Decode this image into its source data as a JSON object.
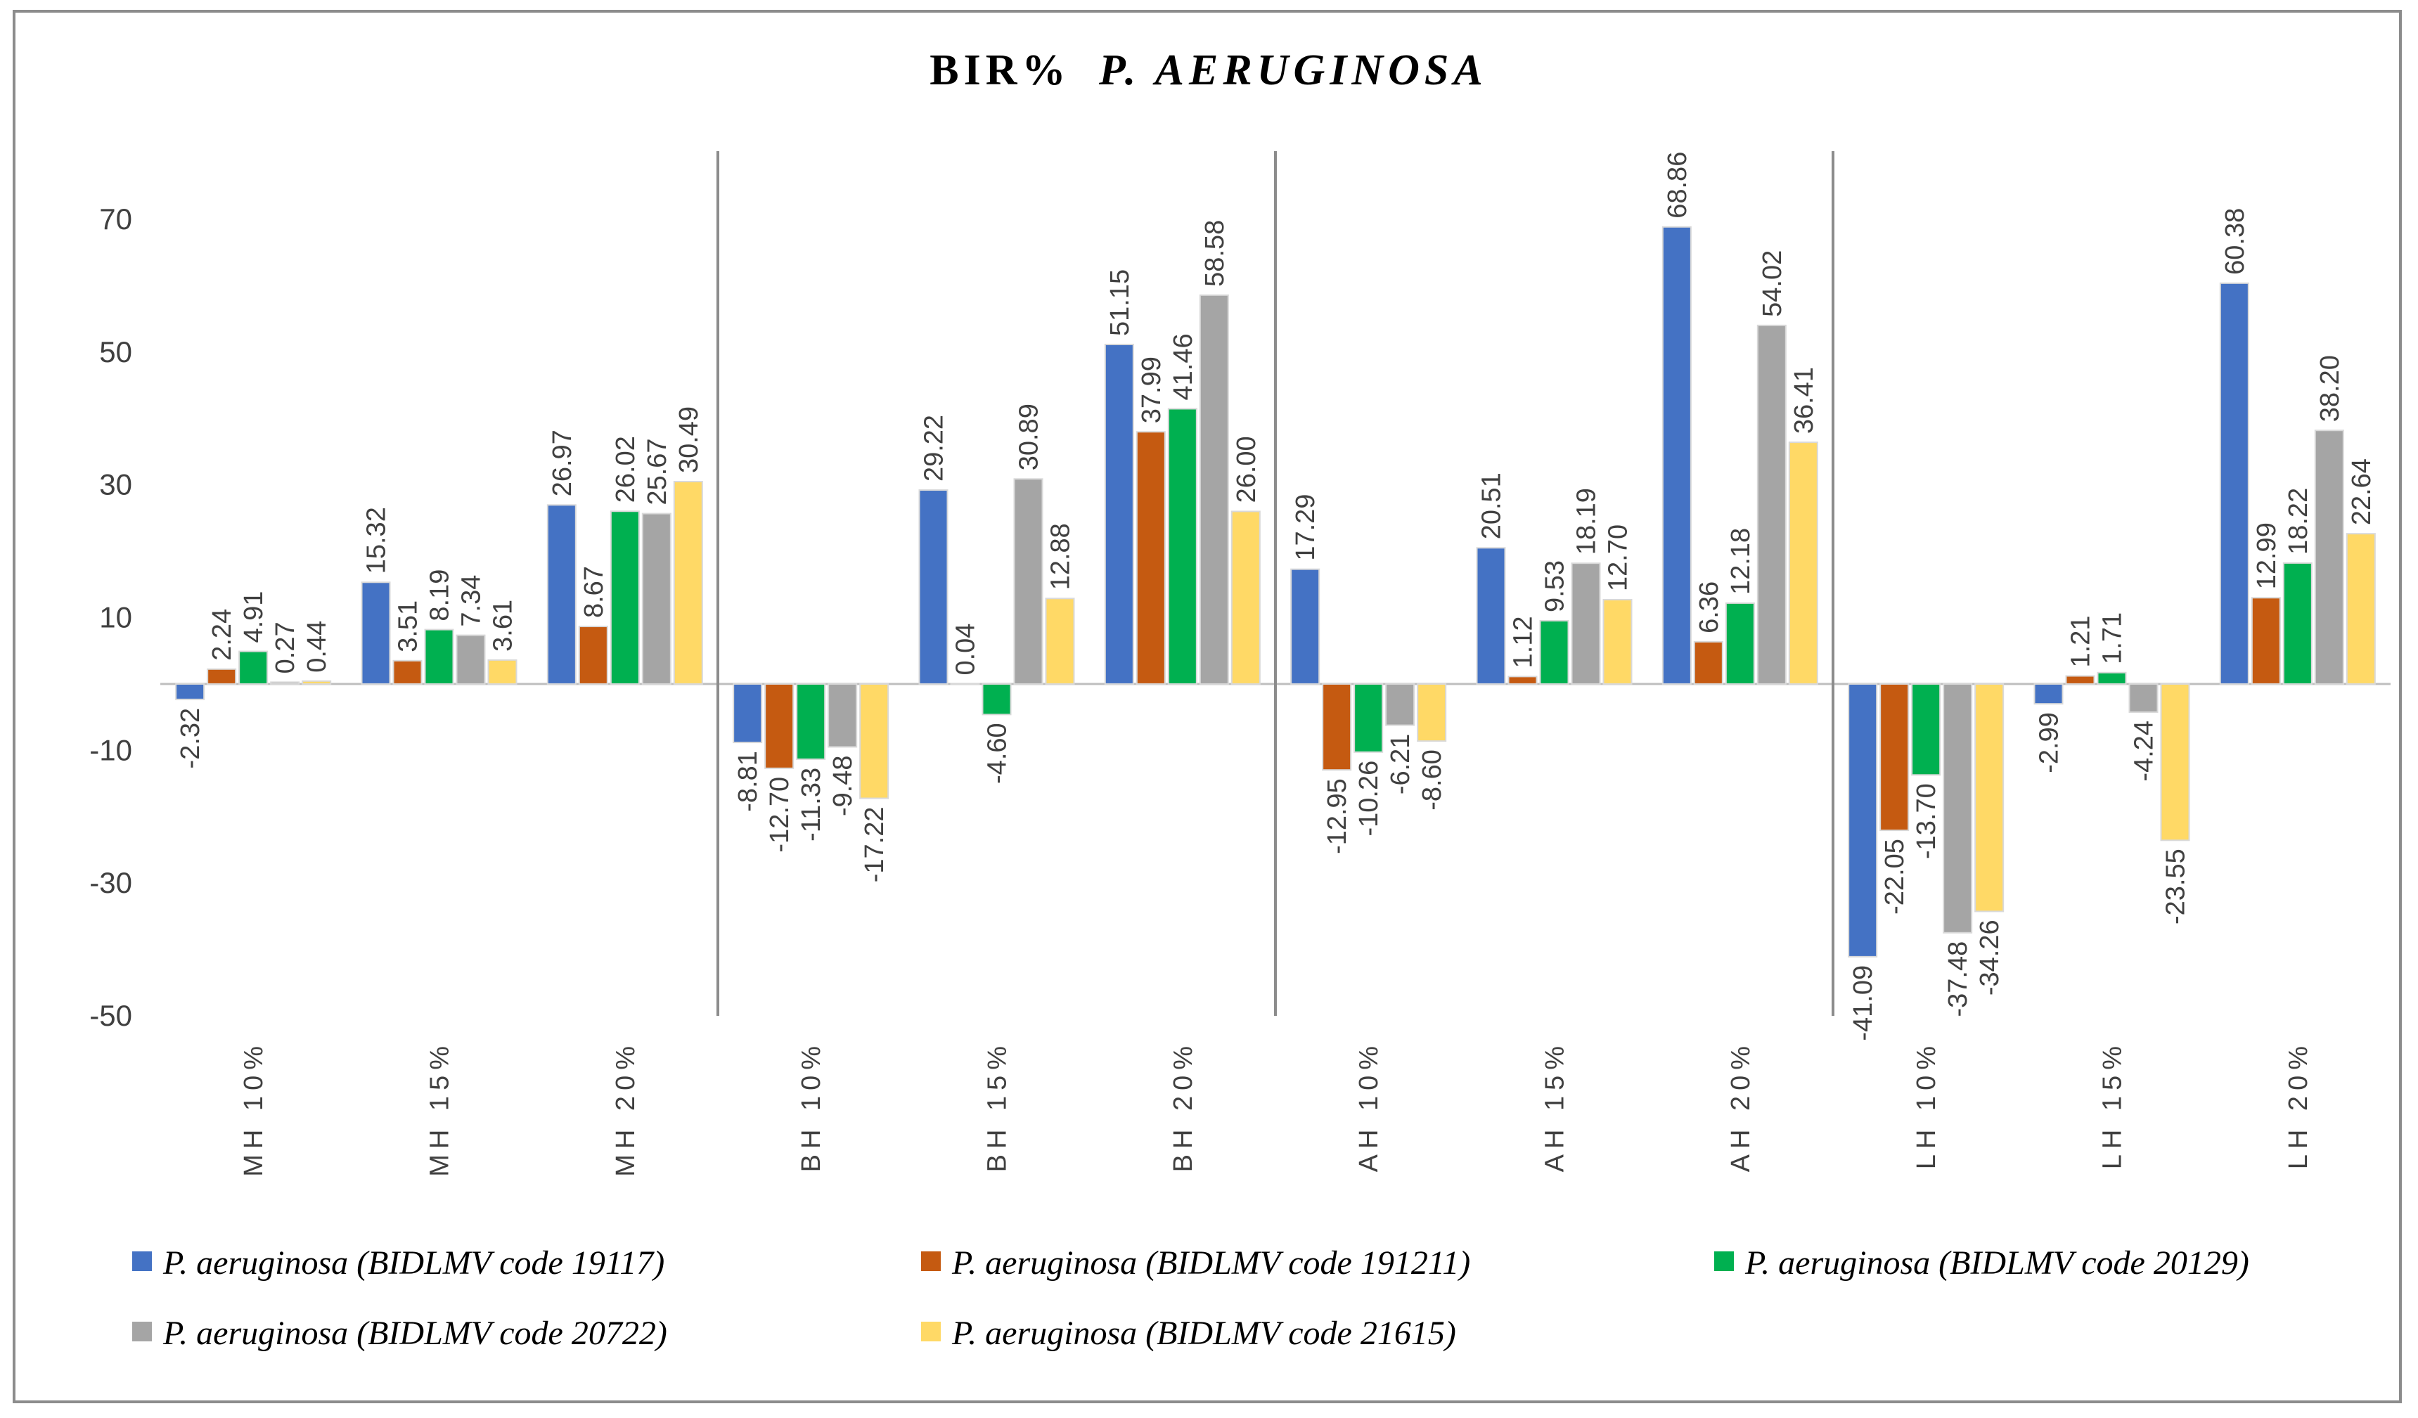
{
  "chart_data": {
    "type": "bar",
    "title": "BIR%",
    "title_species": "P. AERUGINOSA",
    "xlabel": "",
    "ylabel": "",
    "ylim": [
      -50,
      80
    ],
    "yticks": [
      70,
      50,
      30,
      10,
      -10,
      -30,
      -50
    ],
    "grid": false,
    "legend_position": "bottom",
    "categories": [
      "MH 10%",
      "MH 15%",
      "MH 20%",
      "BH 10%",
      "BH 15%",
      "BH 20%",
      "AH 10%",
      "AH 15%",
      "AH 20%",
      "LH 10%",
      "LH 15%",
      "LH 20%"
    ],
    "group_separators_after": [
      3,
      6,
      9
    ],
    "series": [
      {
        "name": "P. aeruginosa (BIDLMV code 19117)",
        "color": "#4472C4",
        "values": [
          -2.32,
          15.32,
          26.97,
          -8.81,
          29.22,
          51.15,
          17.29,
          20.51,
          68.86,
          -41.09,
          -2.99,
          60.38
        ],
        "labels": [
          "-2.32",
          "15.32",
          "26.97",
          "-8.81",
          "29.22",
          "51.15",
          "17.29",
          "20.51",
          "68.86",
          "-41.09",
          "-2.99",
          "60.38"
        ]
      },
      {
        "name": "P. aeruginosa (BIDLMV code 191211)",
        "color": "#C55A11",
        "values": [
          2.24,
          3.51,
          8.67,
          -12.7,
          0.04,
          37.99,
          -12.95,
          1.12,
          6.36,
          -22.05,
          1.21,
          12.99
        ],
        "labels": [
          "2.24",
          "3.51",
          "8.67",
          "-12.70",
          "0.04",
          "37.99",
          "-12.95",
          "1.12",
          "6.36",
          "-22.05",
          "1.21",
          "12.99"
        ]
      },
      {
        "name": "P. aeruginosa (BIDLMV code 20129)",
        "color": "#00B050",
        "values": [
          4.91,
          8.19,
          26.02,
          -11.33,
          -4.6,
          41.46,
          -10.26,
          9.53,
          12.18,
          -13.7,
          1.71,
          18.22
        ],
        "labels": [
          "4.91",
          "8.19",
          "26.02",
          "-11.33",
          "-4.60",
          "41.46",
          "-10.26",
          "9.53",
          "12.18",
          "-13.70",
          "1.71",
          "18.22"
        ]
      },
      {
        "name": "P. aeruginosa (BIDLMV code 20722)",
        "color": "#A5A5A5",
        "values": [
          0.27,
          7.34,
          25.67,
          -9.48,
          30.89,
          58.58,
          -6.21,
          18.19,
          54.02,
          -37.48,
          -4.24,
          38.2
        ],
        "labels": [
          "0.27",
          "7.34",
          "25.67",
          "-9.48",
          "30.89",
          "58.58",
          "-6.21",
          "18.19",
          "54.02",
          "-37.48",
          "-4.24",
          "38.20"
        ]
      },
      {
        "name": "P. aeruginosa (BIDLMV code 21615)",
        "color": "#FFD966",
        "values": [
          0.44,
          3.61,
          30.49,
          -17.22,
          12.88,
          26.0,
          -8.6,
          12.7,
          36.41,
          -34.26,
          -23.55,
          22.64
        ],
        "labels": [
          "0.44",
          "3.61",
          "30.49",
          "-17.22",
          "12.88",
          "26.00",
          "-8.60",
          "12.70",
          "36.41",
          "-34.26",
          "-23.55",
          "22.64"
        ]
      }
    ]
  }
}
